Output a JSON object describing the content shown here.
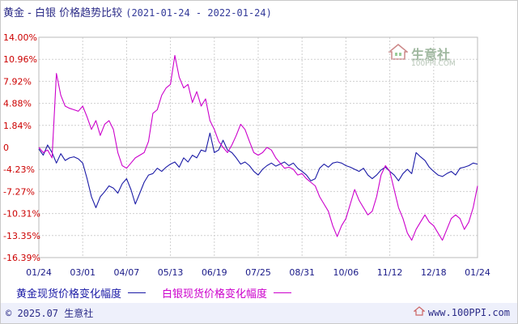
{
  "title": "黄金 - 白银  价格趋势比较",
  "date_range": "(2021-01-24 - 2022-01-24)",
  "watermark": {
    "brand": "生意社",
    "url": "100PPI.COM"
  },
  "footer": {
    "left": "© 2025.07 生意社",
    "right": "www.100PPI.com"
  },
  "colors": {
    "gold": "#1a1aa6",
    "silver": "#cc00cc",
    "grid": "#c9c9c9",
    "axis_text": "#cc0000",
    "date_text": "#1a1a88"
  },
  "chart_data": {
    "type": "line",
    "title": "黄金 - 白银  价格趋势比较 (2021-01-24 - 2022-01-24)",
    "y_ticks": [
      "14.00%",
      "10.96%",
      "7.92%",
      "4.88%",
      "1.84%",
      "0",
      "-4.23%",
      "-7.27%",
      "-10.31%",
      "-13.35%",
      "-16.39%"
    ],
    "ylim": [
      -16.39,
      14.0
    ],
    "x_ticks": [
      "01/24",
      "03/01",
      "04/07",
      "05/13",
      "06/19",
      "07/25",
      "08/31",
      "10/06",
      "11/12",
      "12/18",
      "01/24"
    ],
    "grid": true,
    "legend_position": "bottom",
    "series": [
      {
        "name": "黄金现货价格变化幅度",
        "color": "#1a1aa6",
        "x": [
          0,
          0.01,
          0.02,
          0.03,
          0.04,
          0.05,
          0.06,
          0.07,
          0.08,
          0.09,
          0.1,
          0.11,
          0.12,
          0.13,
          0.14,
          0.15,
          0.16,
          0.17,
          0.18,
          0.19,
          0.2,
          0.21,
          0.22,
          0.23,
          0.24,
          0.25,
          0.26,
          0.27,
          0.28,
          0.29,
          0.3,
          0.31,
          0.32,
          0.33,
          0.34,
          0.35,
          0.36,
          0.37,
          0.38,
          0.39,
          0.4,
          0.41,
          0.42,
          0.43,
          0.44,
          0.45,
          0.46,
          0.47,
          0.48,
          0.49,
          0.5,
          0.51,
          0.52,
          0.53,
          0.54,
          0.55,
          0.56,
          0.57,
          0.58,
          0.59,
          0.6,
          0.61,
          0.62,
          0.63,
          0.64,
          0.65,
          0.66,
          0.67,
          0.68,
          0.69,
          0.7,
          0.71,
          0.72,
          0.73,
          0.74,
          0.75,
          0.76,
          0.77,
          0.78,
          0.79,
          0.8,
          0.81,
          0.82,
          0.83,
          0.84,
          0.85,
          0.86,
          0.87,
          0.88,
          0.89,
          0.9,
          0.91,
          0.92,
          0.93,
          0.94,
          0.95,
          0.96,
          0.97,
          0.98,
          0.99,
          1.0
        ],
        "values": [
          -0.3,
          -1.5,
          0.2,
          -1.0,
          -3.0,
          -1.2,
          -2.5,
          -2.0,
          -1.8,
          -2.2,
          -3.0,
          -5.5,
          -8.0,
          -9.5,
          -8.0,
          -7.3,
          -6.5,
          -6.8,
          -7.5,
          -6.2,
          -5.5,
          -7.0,
          -9.0,
          -7.5,
          -6.0,
          -5.0,
          -4.8,
          -4.0,
          -4.5,
          -3.8,
          -3.2,
          -2.8,
          -3.8,
          -2.0,
          -2.8,
          -1.5,
          -2.0,
          -0.5,
          -0.8,
          1.2,
          -1.0,
          -0.5,
          0.6,
          -0.5,
          -1.0,
          -2.0,
          -3.2,
          -2.8,
          -3.5,
          -4.5,
          -5.0,
          -4.2,
          -3.5,
          -3.0,
          -3.6,
          -3.2,
          -2.8,
          -3.5,
          -3.0,
          -4.0,
          -4.5,
          -5.0,
          -5.8,
          -5.5,
          -4.0,
          -3.2,
          -3.8,
          -3.0,
          -2.8,
          -3.0,
          -3.5,
          -3.8,
          -4.2,
          -4.5,
          -4.0,
          -5.0,
          -5.5,
          -5.0,
          -4.3,
          -3.8,
          -4.5,
          -5.0,
          -5.8,
          -4.8,
          -4.2,
          -4.8,
          -1.0,
          -1.8,
          -2.5,
          -3.8,
          -4.5,
          -5.0,
          -5.2,
          -4.8,
          -4.5,
          -5.0,
          -4.0,
          -3.8,
          -3.5,
          -3.0,
          -3.2
        ]
      },
      {
        "name": "白银现货价格变化幅度",
        "color": "#cc00cc",
        "x": [
          0,
          0.01,
          0.02,
          0.03,
          0.04,
          0.05,
          0.06,
          0.07,
          0.08,
          0.09,
          0.1,
          0.11,
          0.12,
          0.13,
          0.14,
          0.15,
          0.16,
          0.17,
          0.18,
          0.19,
          0.2,
          0.21,
          0.22,
          0.23,
          0.24,
          0.25,
          0.26,
          0.27,
          0.28,
          0.29,
          0.3,
          0.31,
          0.32,
          0.33,
          0.34,
          0.35,
          0.36,
          0.37,
          0.38,
          0.39,
          0.4,
          0.41,
          0.42,
          0.43,
          0.44,
          0.45,
          0.46,
          0.47,
          0.48,
          0.49,
          0.5,
          0.51,
          0.52,
          0.53,
          0.54,
          0.55,
          0.56,
          0.57,
          0.58,
          0.59,
          0.6,
          0.61,
          0.62,
          0.63,
          0.64,
          0.65,
          0.66,
          0.67,
          0.68,
          0.69,
          0.7,
          0.71,
          0.72,
          0.73,
          0.74,
          0.75,
          0.76,
          0.77,
          0.78,
          0.79,
          0.8,
          0.81,
          0.82,
          0.83,
          0.84,
          0.85,
          0.86,
          0.87,
          0.88,
          0.89,
          0.9,
          0.91,
          0.92,
          0.93,
          0.94,
          0.95,
          0.96,
          0.97,
          0.98,
          0.99,
          1.0
        ],
        "values": [
          0.0,
          -1.0,
          -0.5,
          -2.0,
          9.0,
          6.0,
          4.5,
          4.2,
          4.0,
          3.8,
          4.5,
          3.0,
          1.5,
          2.5,
          1.0,
          2.0,
          2.5,
          1.5,
          -1.0,
          -3.5,
          -4.0,
          -3.0,
          -2.0,
          -1.5,
          -1.0,
          0.5,
          3.5,
          4.0,
          6.0,
          7.0,
          7.5,
          11.5,
          8.5,
          7.0,
          7.5,
          5.0,
          6.5,
          4.5,
          5.5,
          2.5,
          1.5,
          0.5,
          0.0,
          -1.0,
          0.2,
          1.0,
          2.0,
          1.5,
          0.5,
          -1.0,
          -1.5,
          -1.0,
          0.0,
          -0.5,
          -2.0,
          -3.0,
          -4.0,
          -3.8,
          -4.2,
          -5.0,
          -4.8,
          -5.5,
          -6.0,
          -6.5,
          -8.0,
          -9.0,
          -10.0,
          -12.0,
          -13.5,
          -12.0,
          -11.0,
          -9.0,
          -7.0,
          -8.5,
          -9.5,
          -10.5,
          -10.0,
          -8.0,
          -5.0,
          -3.5,
          -4.5,
          -7.0,
          -9.5,
          -11.0,
          -13.0,
          -14.0,
          -12.5,
          -11.5,
          -10.5,
          -11.5,
          -12.0,
          -13.0,
          -14.0,
          -12.5,
          -11.0,
          -10.5,
          -11.0,
          -12.5,
          -11.5,
          -9.5,
          -6.5
        ]
      }
    ]
  }
}
